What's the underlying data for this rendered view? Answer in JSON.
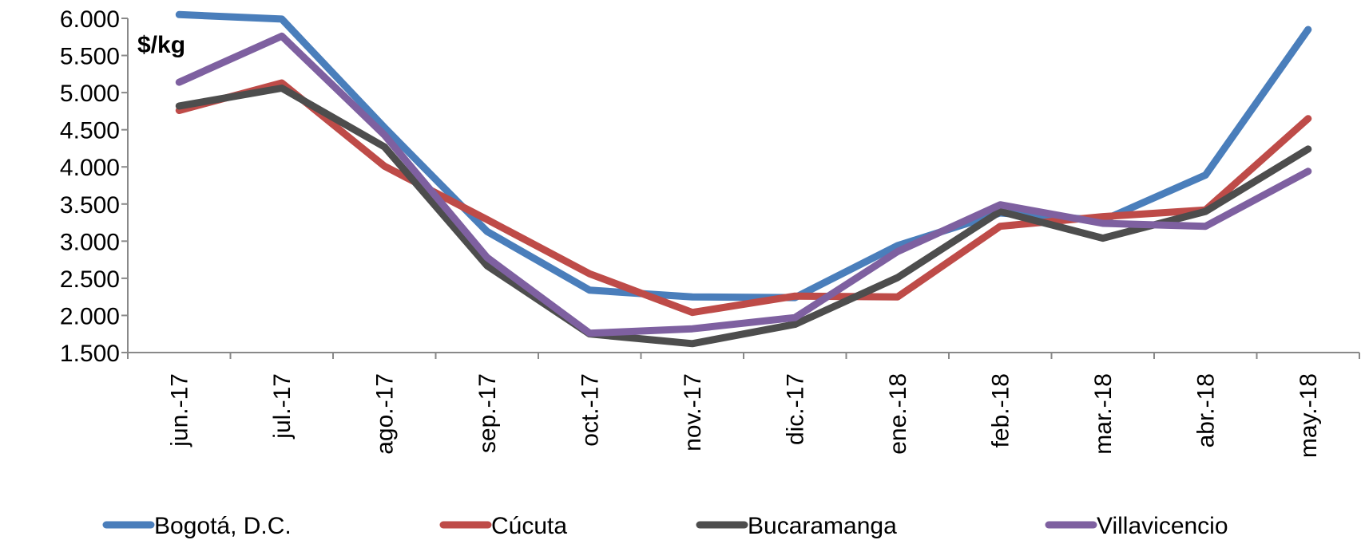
{
  "chart_data": {
    "type": "line",
    "unit_label": "$/kg",
    "categories": [
      "jun.-17",
      "jul.-17",
      "ago.-17",
      "sep.-17",
      "oct.-17",
      "nov.-17",
      "dic.-17",
      "ene.-18",
      "feb.-18",
      "mar.-18",
      "abr.-18",
      "may.-18"
    ],
    "ylim": [
      1500,
      6000
    ],
    "yticks": [
      1500,
      2000,
      2500,
      3000,
      3500,
      4000,
      4500,
      5000,
      5500,
      6000
    ],
    "ytick_labels": [
      "1.500",
      "2.000",
      "2.500",
      "3.000",
      "3.500",
      "4.000",
      "4.500",
      "5.000",
      "5.500",
      "6.000"
    ],
    "grid": false,
    "legend_position": "bottom",
    "series": [
      {
        "name": "Bogotá, D.C.",
        "color": "#4A7EBB",
        "values": [
          6050,
          5990,
          4530,
          3130,
          2340,
          2250,
          2240,
          2940,
          3380,
          3280,
          3890,
          5850
        ]
      },
      {
        "name": "Cúcuta",
        "color": "#BE4B48",
        "values": [
          4760,
          5130,
          4010,
          3290,
          2560,
          2040,
          2260,
          2250,
          3200,
          3330,
          3420,
          4650
        ]
      },
      {
        "name": "Bucaramanga",
        "color": "#4D4D4D",
        "values": [
          4820,
          5060,
          4270,
          2670,
          1750,
          1620,
          1880,
          2510,
          3400,
          3040,
          3400,
          4240
        ]
      },
      {
        "name": "Villavicencio",
        "color": "#7E60A0",
        "values": [
          5140,
          5760,
          4430,
          2780,
          1760,
          1820,
          1970,
          2860,
          3490,
          3240,
          3200,
          3940
        ]
      }
    ]
  }
}
